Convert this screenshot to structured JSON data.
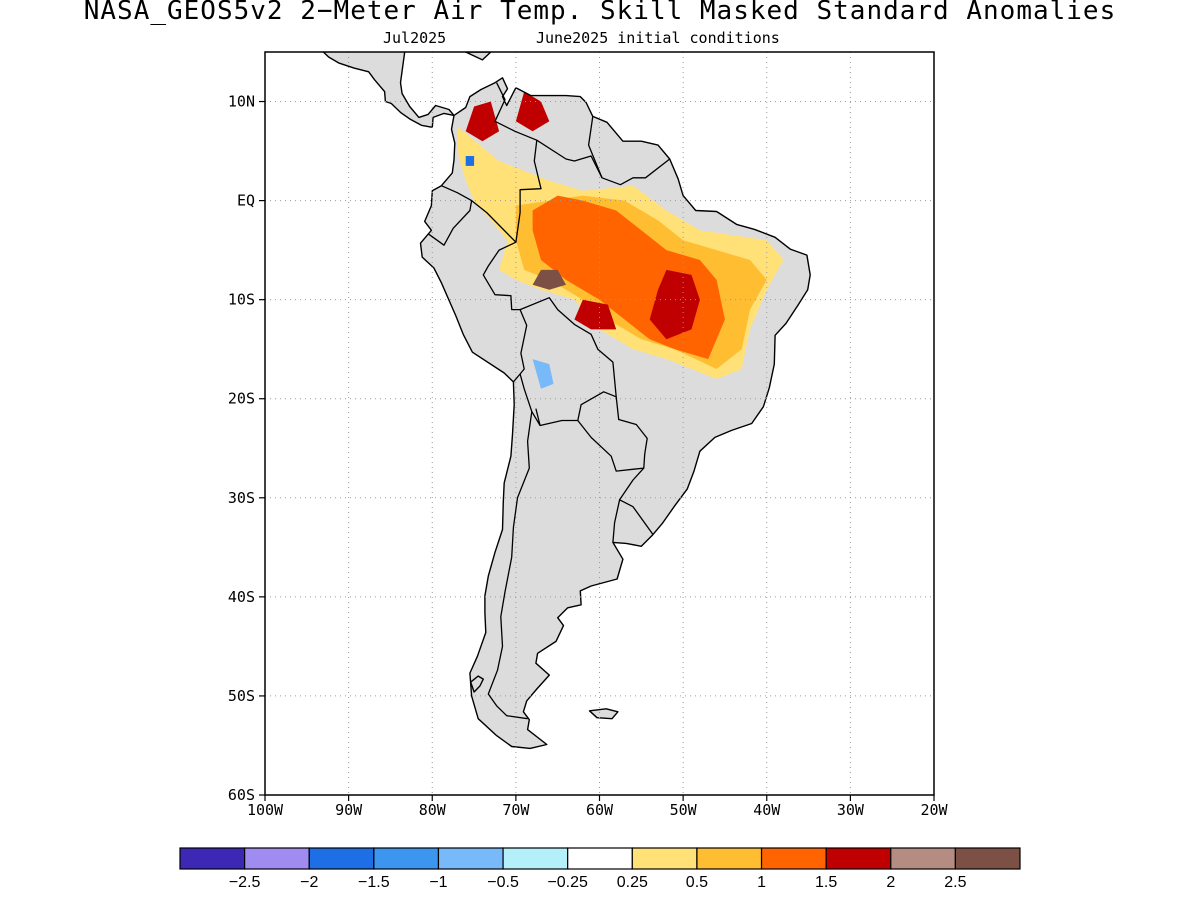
{
  "title": "NASA_GEOS5v2 2−Meter Air Temp. Skill Masked Standard Anomalies",
  "subtitle": {
    "valid_month": "Jul2025",
    "initial_conditions": "June2025 initial conditions"
  },
  "map": {
    "lon_range": [
      -100,
      -20
    ],
    "lat_range": [
      -60,
      15
    ],
    "lat_ticks": [
      {
        "value": 10,
        "label": "10N"
      },
      {
        "value": 0,
        "label": "EQ"
      },
      {
        "value": -10,
        "label": "10S"
      },
      {
        "value": -20,
        "label": "20S"
      },
      {
        "value": -30,
        "label": "30S"
      },
      {
        "value": -40,
        "label": "40S"
      },
      {
        "value": -50,
        "label": "50S"
      },
      {
        "value": -60,
        "label": "60S"
      }
    ],
    "lon_ticks": [
      {
        "value": -100,
        "label": "100W"
      },
      {
        "value": -90,
        "label": "90W"
      },
      {
        "value": -80,
        "label": "80W"
      },
      {
        "value": -70,
        "label": "70W"
      },
      {
        "value": -60,
        "label": "60W"
      },
      {
        "value": -50,
        "label": "50W"
      },
      {
        "value": -40,
        "label": "40W"
      },
      {
        "value": -30,
        "label": "30W"
      },
      {
        "value": -20,
        "label": "20W"
      }
    ],
    "gridlines": true,
    "masked_color": "#dcdcdc"
  },
  "colorbar": {
    "colors": [
      "#3c28b4",
      "#a08cf0",
      "#1e6ee6",
      "#3c96f0",
      "#78b9fa",
      "#b4f0fa",
      "#ffffff",
      "#ffe178",
      "#ffbe32",
      "#ff6400",
      "#c00000",
      "#b48c82",
      "#7d5046"
    ],
    "labels": [
      "−2.5",
      "−2",
      "−1.5",
      "−1",
      "−0.5",
      "−0.25",
      "0.25",
      "0.5",
      "1",
      "1.5",
      "2",
      "2.5"
    ]
  },
  "anomaly_regions": [
    {
      "level": "0.5",
      "color": "#ffe178",
      "points": [
        [
          -77,
          7.5
        ],
        [
          -72,
          4
        ],
        [
          -66,
          2
        ],
        [
          -62,
          1
        ],
        [
          -56,
          1.5
        ],
        [
          -52,
          -1
        ],
        [
          -48,
          -3
        ],
        [
          -44,
          -3.5
        ],
        [
          -40,
          -4
        ],
        [
          -38,
          -6
        ],
        [
          -40,
          -9
        ],
        [
          -42,
          -13
        ],
        [
          -43,
          -17
        ],
        [
          -46,
          -18
        ],
        [
          -52,
          -16
        ],
        [
          -56,
          -15
        ],
        [
          -60,
          -13
        ],
        [
          -63,
          -10
        ],
        [
          -67,
          -9
        ],
        [
          -70,
          -8
        ],
        [
          -72,
          -7
        ],
        [
          -71,
          -4
        ],
        [
          -73,
          -2
        ],
        [
          -75,
          0
        ],
        [
          -76,
          2
        ],
        [
          -77,
          5
        ]
      ]
    },
    {
      "level": "1",
      "color": "#ffbe32",
      "points": [
        [
          -70,
          -0.5
        ],
        [
          -66,
          0
        ],
        [
          -62,
          0.5
        ],
        [
          -57,
          0
        ],
        [
          -53,
          -2
        ],
        [
          -50,
          -4
        ],
        [
          -46,
          -5
        ],
        [
          -42,
          -6
        ],
        [
          -40,
          -8
        ],
        [
          -42,
          -11
        ],
        [
          -43,
          -15
        ],
        [
          -46,
          -17
        ],
        [
          -51,
          -15
        ],
        [
          -55,
          -14
        ],
        [
          -59,
          -12
        ],
        [
          -62,
          -10
        ],
        [
          -66,
          -8
        ],
        [
          -69,
          -7
        ],
        [
          -70,
          -4
        ]
      ]
    },
    {
      "level": "1.5",
      "color": "#ff6400",
      "points": [
        [
          -68,
          -1
        ],
        [
          -65,
          0.5
        ],
        [
          -62,
          0
        ],
        [
          -58,
          -1
        ],
        [
          -55,
          -3
        ],
        [
          -52,
          -5
        ],
        [
          -48,
          -6
        ],
        [
          -46,
          -8
        ],
        [
          -45,
          -12
        ],
        [
          -47,
          -16
        ],
        [
          -51,
          -15
        ],
        [
          -54,
          -14
        ],
        [
          -57,
          -12
        ],
        [
          -60,
          -10
        ],
        [
          -64,
          -8
        ],
        [
          -67,
          -6
        ],
        [
          -68,
          -3
        ]
      ]
    },
    {
      "level": "2",
      "color": "#c00000",
      "points": [
        [
          -52,
          -7
        ],
        [
          -49,
          -7.5
        ],
        [
          -48,
          -10
        ],
        [
          -49,
          -13
        ],
        [
          -52,
          -14
        ],
        [
          -54,
          -12
        ],
        [
          -53,
          -9
        ]
      ]
    },
    {
      "level": "2",
      "color": "#c00000",
      "points": [
        [
          -62,
          -10
        ],
        [
          -59,
          -10.5
        ],
        [
          -58,
          -13
        ],
        [
          -61,
          -13
        ],
        [
          -63,
          -12
        ]
      ]
    },
    {
      "level": "2",
      "color": "#c00000",
      "points": [
        [
          -75,
          9.5
        ],
        [
          -73,
          10
        ],
        [
          -72,
          7
        ],
        [
          -74,
          6
        ],
        [
          -76,
          7
        ]
      ]
    },
    {
      "level": "2",
      "color": "#c00000",
      "points": [
        [
          -69,
          11
        ],
        [
          -67,
          10
        ],
        [
          -66,
          8
        ],
        [
          -68,
          7
        ],
        [
          -70,
          8
        ]
      ]
    },
    {
      "level": "2.5",
      "color": "#7d5046",
      "points": [
        [
          -67,
          -7
        ],
        [
          -65,
          -7
        ],
        [
          -64,
          -8.5
        ],
        [
          -66,
          -9
        ],
        [
          -68,
          -8.5
        ]
      ]
    },
    {
      "level": "−0.5",
      "color": "#78b9fa",
      "points": [
        [
          -68,
          -16
        ],
        [
          -66,
          -16.5
        ],
        [
          -65.5,
          -18.5
        ],
        [
          -67,
          -19
        ]
      ]
    },
    {
      "level": "−1.5",
      "color": "#1e6ee6",
      "points": [
        [
          -76,
          4.5
        ],
        [
          -75,
          4.5
        ],
        [
          -75,
          3.5
        ],
        [
          -76,
          3.5
        ]
      ]
    }
  ],
  "land": {
    "south_america": [
      [
        -77.4,
        8.6
      ],
      [
        -76,
        9.4
      ],
      [
        -75.5,
        10.5
      ],
      [
        -74.2,
        11.2
      ],
      [
        -72.5,
        11.9
      ],
      [
        -71.6,
        12.4
      ],
      [
        -71,
        11.3
      ],
      [
        -71.6,
        10.5
      ],
      [
        -71.1,
        9.6
      ],
      [
        -70,
        11.4
      ],
      [
        -68.2,
        10.6
      ],
      [
        -66,
        10.6
      ],
      [
        -64,
        10.6
      ],
      [
        -62.3,
        10.5
      ],
      [
        -61.6,
        9.9
      ],
      [
        -60.8,
        8.5
      ],
      [
        -59.1,
        7.9
      ],
      [
        -57.2,
        6
      ],
      [
        -55,
        6
      ],
      [
        -53,
        5.6
      ],
      [
        -51.6,
        4.2
      ],
      [
        -50.6,
        2.2
      ],
      [
        -50,
        0.5
      ],
      [
        -48.5,
        -1
      ],
      [
        -46,
        -1.1
      ],
      [
        -43.6,
        -2.4
      ],
      [
        -41.5,
        -2.9
      ],
      [
        -39,
        -3.7
      ],
      [
        -37.2,
        -4.9
      ],
      [
        -35.2,
        -5.5
      ],
      [
        -34.8,
        -7.5
      ],
      [
        -35.1,
        -9
      ],
      [
        -36.3,
        -10.6
      ],
      [
        -37.7,
        -12.4
      ],
      [
        -39,
        -13.6
      ],
      [
        -39.1,
        -16.5
      ],
      [
        -39.7,
        -18.9
      ],
      [
        -40.4,
        -20.8
      ],
      [
        -41.8,
        -22.5
      ],
      [
        -44.2,
        -23.2
      ],
      [
        -46.2,
        -23.9
      ],
      [
        -48,
        -25.3
      ],
      [
        -48.7,
        -27.3
      ],
      [
        -49.5,
        -29.1
      ],
      [
        -51,
        -30.8
      ],
      [
        -52.5,
        -32.6
      ],
      [
        -53.7,
        -33.8
      ],
      [
        -55,
        -34.9
      ],
      [
        -56.8,
        -34.6
      ],
      [
        -58.4,
        -34.5
      ],
      [
        -57.2,
        -36.2
      ],
      [
        -57.9,
        -38.2
      ],
      [
        -61,
        -38.9
      ],
      [
        -62.3,
        -39.4
      ],
      [
        -62.2,
        -40.8
      ],
      [
        -63.8,
        -41.1
      ],
      [
        -65,
        -42.1
      ],
      [
        -64.3,
        -42.9
      ],
      [
        -65.2,
        -44.5
      ],
      [
        -67.4,
        -45.7
      ],
      [
        -67.6,
        -46.7
      ],
      [
        -66,
        -47.9
      ],
      [
        -67.5,
        -49.3
      ],
      [
        -68.7,
        -50.5
      ],
      [
        -69.1,
        -51.6
      ],
      [
        -68.4,
        -52.4
      ],
      [
        -68.6,
        -53.4
      ],
      [
        -66.3,
        -54.9
      ],
      [
        -68.3,
        -55.3
      ],
      [
        -70.5,
        -55.1
      ],
      [
        -72.3,
        -54
      ],
      [
        -74.5,
        -52.3
      ],
      [
        -75.3,
        -50
      ],
      [
        -75.5,
        -47.7
      ],
      [
        -74.6,
        -46
      ],
      [
        -73.6,
        -43.6
      ],
      [
        -73.7,
        -41.6
      ],
      [
        -73.7,
        -39.9
      ],
      [
        -73.3,
        -37.9
      ],
      [
        -72.5,
        -35.5
      ],
      [
        -71.6,
        -33.2
      ],
      [
        -71.5,
        -30.4
      ],
      [
        -71.4,
        -28.5
      ],
      [
        -70.6,
        -25.8
      ],
      [
        -70.4,
        -23.6
      ],
      [
        -70.2,
        -20.6
      ],
      [
        -70.3,
        -18.3
      ],
      [
        -71.4,
        -17.4
      ],
      [
        -75.2,
        -15.3
      ],
      [
        -76.3,
        -13.5
      ],
      [
        -77.2,
        -11.6
      ],
      [
        -78.9,
        -8.3
      ],
      [
        -79.8,
        -6.8
      ],
      [
        -81.2,
        -5.7
      ],
      [
        -81.4,
        -4.3
      ],
      [
        -80.1,
        -3
      ],
      [
        -80.9,
        -2.1
      ],
      [
        -80.1,
        -0.5
      ],
      [
        -80,
        1
      ],
      [
        -78.9,
        1.5
      ],
      [
        -77.6,
        2.8
      ],
      [
        -77.4,
        4.1
      ],
      [
        -77.3,
        5.8
      ],
      [
        -77.7,
        7.2
      ]
    ],
    "central_america": [
      [
        -77.4,
        8.6
      ],
      [
        -78,
        9.2
      ],
      [
        -79.6,
        9.6
      ],
      [
        -80.5,
        8.7
      ],
      [
        -81.6,
        8.4
      ],
      [
        -82.7,
        9.5
      ],
      [
        -83.6,
        10.8
      ],
      [
        -83.8,
        11.9
      ],
      [
        -83.3,
        15
      ],
      [
        -85.6,
        16
      ],
      [
        -88,
        15.8
      ],
      [
        -88.3,
        17.4
      ],
      [
        -88.2,
        18.8
      ],
      [
        -87.5,
        20.5
      ],
      [
        -86.8,
        21.5
      ],
      [
        -90.3,
        21
      ],
      [
        -91.4,
        18.9
      ],
      [
        -94,
        18.3
      ],
      [
        -95.9,
        18.8
      ],
      [
        -97.2,
        20.8
      ],
      [
        -97.7,
        22.5
      ],
      [
        -100,
        22.5
      ],
      [
        -100,
        16.6
      ],
      [
        -97,
        15.9
      ],
      [
        -94.5,
        16.2
      ],
      [
        -92.4,
        14.5
      ],
      [
        -91.2,
        13.9
      ],
      [
        -89.4,
        13.4
      ],
      [
        -87.6,
        13
      ],
      [
        -86.9,
        12.2
      ],
      [
        -85.7,
        11
      ],
      [
        -85.6,
        10
      ],
      [
        -84.9,
        9.8
      ],
      [
        -83.8,
        8.9
      ],
      [
        -82.6,
        8.2
      ],
      [
        -81.3,
        7.6
      ],
      [
        -80,
        7.4
      ],
      [
        -79.9,
        8.4
      ],
      [
        -78.6,
        8.8
      ]
    ],
    "falklands": [
      [
        -61.2,
        -51.5
      ],
      [
        -59.2,
        -51.3
      ],
      [
        -57.8,
        -51.6
      ],
      [
        -58.5,
        -52.3
      ],
      [
        -60.3,
        -52.2
      ]
    ],
    "tierra_del_fuego_fragments": [
      [
        -74.5,
        -48
      ],
      [
        -75.4,
        -48.6
      ],
      [
        -75,
        -49.6
      ],
      [
        -74.3,
        -49
      ],
      [
        -73.9,
        -48.3
      ]
    ],
    "cuba_fragment": [
      [
        -76,
        15
      ],
      [
        -73,
        15
      ],
      [
        -74,
        14.2
      ]
    ]
  },
  "borders": [
    [
      [
        -72.3,
        11.9
      ],
      [
        -71.3,
        10.2
      ],
      [
        -72.5,
        8
      ],
      [
        -70.1,
        7
      ],
      [
        -67.5,
        6.1
      ],
      [
        -67.8,
        4
      ],
      [
        -67,
        1.2
      ],
      [
        -69.5,
        1.1
      ],
      [
        -69.5,
        -1.2
      ],
      [
        -70,
        -4.2
      ]
    ],
    [
      [
        -60.8,
        8.5
      ],
      [
        -61.3,
        5.6
      ],
      [
        -59.7,
        2.3
      ],
      [
        -57.5,
        1.6
      ],
      [
        -56,
        2.3
      ],
      [
        -54.5,
        2.3
      ],
      [
        -51.6,
        4.2
      ]
    ],
    [
      [
        -67.5,
        6.1
      ],
      [
        -64,
        4.2
      ],
      [
        -63,
        4
      ],
      [
        -61,
        4.5
      ],
      [
        -59.7,
        2.3
      ]
    ],
    [
      [
        -78.9,
        1.5
      ],
      [
        -77,
        0.8
      ],
      [
        -75.3,
        0
      ],
      [
        -75.5,
        -1
      ],
      [
        -77.5,
        -2.8
      ],
      [
        -78.6,
        -4.5
      ],
      [
        -80.4,
        -3.4
      ]
    ],
    [
      [
        -75.3,
        0
      ],
      [
        -73.5,
        -1.2
      ],
      [
        -70,
        -4.2
      ],
      [
        -72,
        -5
      ],
      [
        -73.3,
        -6.6
      ],
      [
        -73.9,
        -7.5
      ],
      [
        -72.5,
        -9.5
      ],
      [
        -70.6,
        -9.6
      ],
      [
        -70.5,
        -11
      ],
      [
        -69.5,
        -11
      ],
      [
        -68.7,
        -12.6
      ],
      [
        -69.4,
        -15.4
      ],
      [
        -69,
        -17
      ],
      [
        -69.5,
        -17.5
      ],
      [
        -70.3,
        -18.3
      ]
    ],
    [
      [
        -69.5,
        -11
      ],
      [
        -66,
        -9.8
      ],
      [
        -65,
        -11
      ],
      [
        -63,
        -12.5
      ],
      [
        -61,
        -13.5
      ],
      [
        -60.2,
        -15
      ],
      [
        -58.4,
        -16.3
      ],
      [
        -58,
        -19.8
      ],
      [
        -59.5,
        -19.3
      ],
      [
        -62.2,
        -20.6
      ],
      [
        -62.6,
        -22.2
      ],
      [
        -64.5,
        -22.2
      ],
      [
        -67.1,
        -22.7
      ],
      [
        -68.1,
        -21.3
      ],
      [
        -69,
        -19
      ],
      [
        -69.5,
        -17.5
      ]
    ],
    [
      [
        -58,
        -19.8
      ],
      [
        -57.7,
        -22.1
      ],
      [
        -55.6,
        -22.6
      ],
      [
        -54.3,
        -24
      ],
      [
        -54.6,
        -25.6
      ],
      [
        -54.7,
        -27
      ],
      [
        -58,
        -27.3
      ],
      [
        -58.6,
        -25.8
      ],
      [
        -61,
        -23.9
      ],
      [
        -62.6,
        -22.2
      ]
    ],
    [
      [
        -54.7,
        -27
      ],
      [
        -56,
        -28.2
      ],
      [
        -57.6,
        -30.2
      ],
      [
        -56,
        -30.9
      ],
      [
        -53.6,
        -33.7
      ]
    ],
    [
      [
        -57.6,
        -30.2
      ],
      [
        -58.2,
        -32.5
      ],
      [
        -58.4,
        -34.5
      ]
    ],
    [
      [
        -68.1,
        -21.3
      ],
      [
        -68.6,
        -24.3
      ],
      [
        -68.4,
        -27
      ],
      [
        -69.8,
        -30
      ],
      [
        -70.3,
        -33
      ],
      [
        -70.5,
        -36
      ],
      [
        -71.3,
        -39.5
      ],
      [
        -71.8,
        -42
      ],
      [
        -71.6,
        -45
      ],
      [
        -72.2,
        -47.4
      ],
      [
        -73.3,
        -49.8
      ],
      [
        -72.3,
        -51
      ],
      [
        -71.1,
        -52
      ],
      [
        -68.6,
        -52.3
      ]
    ],
    [
      [
        -67.1,
        -22.7
      ],
      [
        -67.6,
        -21
      ]
    ]
  ]
}
